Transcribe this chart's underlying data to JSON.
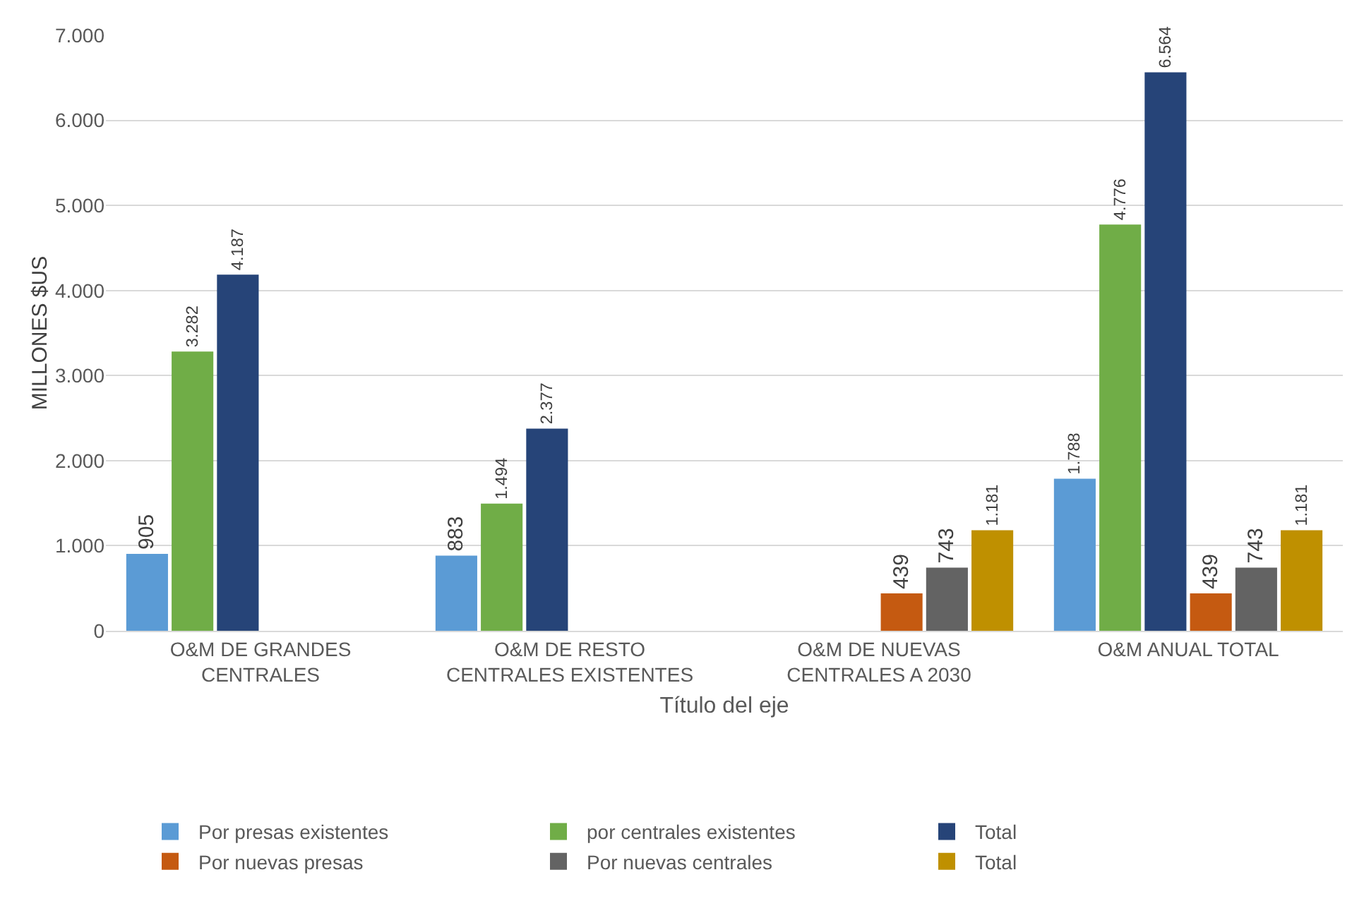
{
  "chart_data": {
    "type": "bar",
    "xlabel": "Título del eje",
    "ylabel": "MILLONES $US",
    "categories": [
      "O&M DE GRANDES CENTRALES",
      "O&M DE RESTO CENTRALES EXISTENTES",
      "O&M DE NUEVAS CENTRALES A 2030",
      "O&M ANUAL TOTAL"
    ],
    "series": [
      {
        "name": "Por presas existentes",
        "color": "#5b9bd5",
        "values": [
          905,
          883,
          null,
          1788
        ],
        "value_labels": [
          "905",
          "883",
          null,
          "1.788"
        ]
      },
      {
        "name": "por centrales existentes",
        "color": "#70ad47",
        "values": [
          3282,
          1494,
          null,
          4776
        ],
        "value_labels": [
          "3.282",
          "1.494",
          null,
          "4.776"
        ]
      },
      {
        "name": "Total",
        "color": "#264478",
        "values": [
          4187,
          2377,
          null,
          6564
        ],
        "value_labels": [
          "4.187",
          "2.377",
          null,
          "6.564"
        ]
      },
      {
        "name": "Por nuevas presas",
        "color": "#c55a11",
        "values": [
          null,
          null,
          439,
          439
        ],
        "value_labels": [
          null,
          null,
          "439",
          "439"
        ]
      },
      {
        "name": "Por nuevas centrales",
        "color": "#636363",
        "values": [
          null,
          null,
          743,
          743
        ],
        "value_labels": [
          null,
          null,
          "743",
          "743"
        ]
      },
      {
        "name": "Total",
        "color": "#bf9000",
        "values": [
          null,
          null,
          1181,
          1181
        ],
        "value_labels": [
          null,
          null,
          "1.181",
          "1.181"
        ]
      }
    ],
    "ylim": [
      0,
      7000
    ],
    "yticks": [
      0,
      {
        "value": 1000,
        "label": "1.000"
      },
      {
        "value": 2000,
        "label": "2.000"
      },
      {
        "value": 3000,
        "label": "3.000"
      },
      {
        "value": 4000,
        "label": "4.000"
      },
      {
        "value": 5000,
        "label": "5.000"
      },
      {
        "value": 6000,
        "label": "6.000"
      },
      {
        "value": 7000,
        "label": "7.000"
      }
    ],
    "grid": "y",
    "legend": "bottom"
  }
}
